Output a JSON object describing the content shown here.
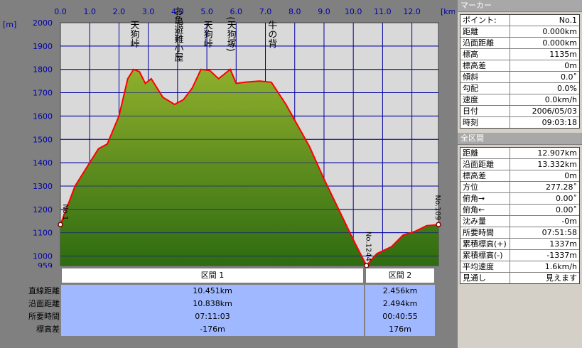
{
  "chart_data": {
    "type": "area",
    "x_unit": "[km]",
    "y_unit": "[m]",
    "x_ticks": [
      "0.0",
      "1.0",
      "2.0",
      "3.0",
      "4.0",
      "5.0",
      "6.0",
      "7.0",
      "8.0",
      "9.0",
      "10.0",
      "11.0",
      "12.0"
    ],
    "y_ticks": [
      "2000",
      "1900",
      "1800",
      "1700",
      "1600",
      "1500",
      "1400",
      "1300",
      "1200",
      "1100",
      "1000",
      "959"
    ],
    "xlim": [
      0,
      12.907
    ],
    "ylim": [
      959,
      2000
    ],
    "grid": true,
    "x": [
      0,
      0.2,
      0.5,
      1.0,
      1.3,
      1.6,
      2.0,
      2.3,
      2.5,
      2.7,
      2.9,
      3.1,
      3.5,
      3.9,
      4.2,
      4.5,
      4.8,
      5.1,
      5.4,
      5.7,
      5.8,
      6.0,
      6.3,
      6.8,
      7.2,
      7.7,
      8.1,
      8.5,
      9.0,
      9.5,
      10.0,
      10.45,
      10.8,
      11.3,
      11.7,
      12.1,
      12.5,
      12.907
    ],
    "y": [
      1135,
      1200,
      1300,
      1400,
      1460,
      1480,
      1600,
      1760,
      1800,
      1790,
      1740,
      1760,
      1680,
      1650,
      1670,
      1720,
      1800,
      1795,
      1760,
      1790,
      1800,
      1740,
      1745,
      1750,
      1745,
      1650,
      1560,
      1470,
      1330,
      1200,
      1070,
      959,
      1010,
      1040,
      1090,
      1105,
      1130,
      1135
    ],
    "line_color": "#ff0000",
    "fill_top": "#8faf2c",
    "fill_bottom": "#2e6b10",
    "peaks": [
      {
        "label": "天狗峠",
        "x": 2.5
      },
      {
        "label": "お亀避難小屋",
        "x": 4.0
      },
      {
        "label": "天狗峠",
        "x": 5.0
      },
      {
        "label": "(天狗塚)",
        "x": 5.8
      },
      {
        "label": "牛の背",
        "x": 7.2
      }
    ],
    "markers": [
      {
        "label": "No.1",
        "x": 0
      },
      {
        "label": "No.1244",
        "x": 10.45
      },
      {
        "label": "No.109",
        "x": 12.907
      }
    ]
  },
  "sections": {
    "headers": [
      "区間 1",
      "区間 2"
    ],
    "rows": [
      {
        "label": "直線距離",
        "v1": "10.451km",
        "v2": "2.456km"
      },
      {
        "label": "沿面距離",
        "v1": "10.838km",
        "v2": "2.494km"
      },
      {
        "label": "所要時間",
        "v1": "07:11:03",
        "v2": "00:40:55"
      },
      {
        "label": "標高差",
        "v1": "-176m",
        "v2": "176m"
      }
    ]
  },
  "panel": {
    "marker_title": "マーカー",
    "marker_rows": [
      {
        "k": "ポイント:",
        "v": "No.1"
      },
      {
        "k": "距離",
        "v": "0.000km"
      },
      {
        "k": "沿面距離",
        "v": "0.000km"
      },
      {
        "k": "標高",
        "v": "1135m"
      },
      {
        "k": "標高差",
        "v": "0m"
      },
      {
        "k": "傾斜",
        "v": "0.0˚"
      },
      {
        "k": "勾配",
        "v": "0.0%"
      },
      {
        "k": "速度",
        "v": "0.0km/h"
      },
      {
        "k": "日付",
        "v": "2006/05/03"
      },
      {
        "k": "時刻",
        "v": "09:03:18"
      }
    ],
    "all_title": "全区間",
    "all_rows": [
      {
        "k": "距離",
        "v": "12.907km"
      },
      {
        "k": "沿面距離",
        "v": "13.332km"
      },
      {
        "k": "標高差",
        "v": "0m"
      },
      {
        "k": "方位",
        "v": "277.28˚"
      },
      {
        "k": "俯角→",
        "v": "0.00˚"
      },
      {
        "k": "俯角←",
        "v": "0.00˚"
      },
      {
        "k": "沈み量",
        "v": "-0m"
      },
      {
        "k": "所要時間",
        "v": "07:51:58"
      },
      {
        "k": "累積標高(+)",
        "v": "1337m"
      },
      {
        "k": "累積標高(-)",
        "v": "-1337m"
      },
      {
        "k": "平均速度",
        "v": "1.6km/h"
      },
      {
        "k": "見通し",
        "v": "見えます"
      }
    ]
  }
}
